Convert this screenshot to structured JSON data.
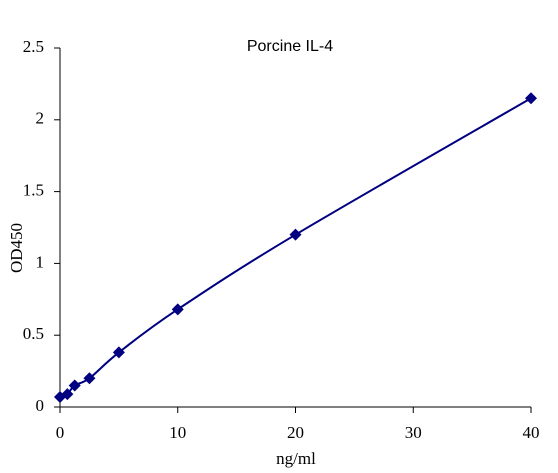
{
  "chart_data": {
    "type": "scatter",
    "title": "Porcine IL-4",
    "x_label": "ng/ml",
    "y_label": "OD450",
    "x": [
      0,
      0.625,
      1.25,
      2.5,
      5,
      10,
      20,
      40
    ],
    "values": [
      0.07,
      0.09,
      0.15,
      0.2,
      0.38,
      0.68,
      1.2,
      2.15
    ],
    "color": "#000080",
    "marker": "diamond",
    "smooth_line": true,
    "xlim": [
      0,
      40
    ],
    "xticks": [
      0,
      10,
      20,
      30,
      40
    ],
    "ylim": [
      0,
      2.5
    ],
    "yticks": [
      0,
      0.5,
      1,
      1.5,
      2,
      2.5
    ],
    "grid": false
  }
}
